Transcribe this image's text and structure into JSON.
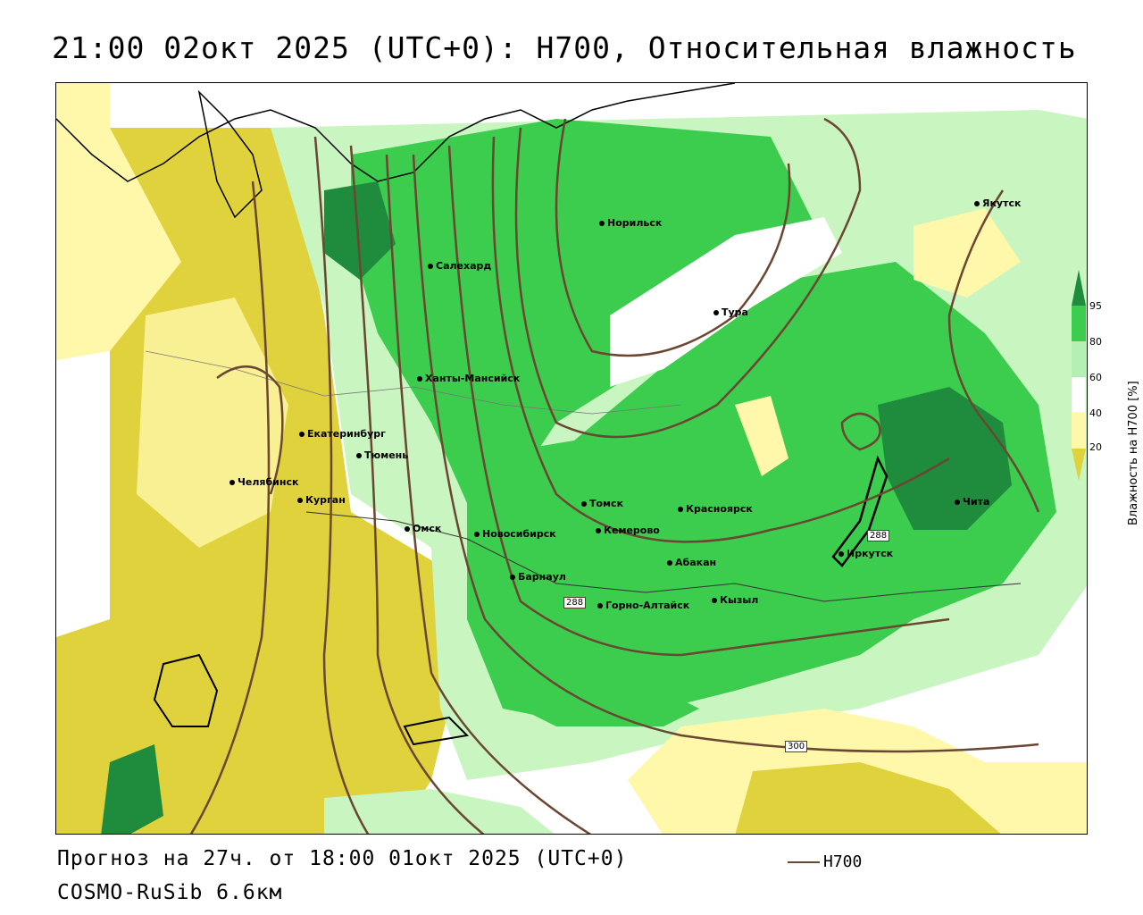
{
  "header": {
    "title": "21:00 02окт 2025 (UTC+0): H700, Относительная влажность"
  },
  "footer": {
    "forecast": "Прогноз на 27ч. от 18:00 01окт 2025 (UTC+0)",
    "model": "COSMO-RuSib 6.6км",
    "legend_label": "H700"
  },
  "colorbar": {
    "title": "Влажность на H700 [%]",
    "ticks": [
      "95",
      "80",
      "60",
      "40",
      "20"
    ],
    "colors": [
      "#1e8c3c",
      "#3ccc4e",
      "#b4f0b4",
      "#ffffff",
      "#fff7aa",
      "#e0d23c"
    ]
  },
  "contour_labels": [
    "288",
    "288",
    "300"
  ],
  "colors": {
    "contour": "#6b4632",
    "dry": "#e0d23c",
    "dry_light": "#fff7aa",
    "moist_light": "#c8f5c0",
    "moist": "#3ccc4e",
    "moist_dark": "#1e8c3c"
  },
  "cities": [
    {
      "name": "Норильск"
    },
    {
      "name": "Якутск"
    },
    {
      "name": "Салехард"
    },
    {
      "name": "Тура"
    },
    {
      "name": "Ханты-Мансийск"
    },
    {
      "name": "Екатеринбург"
    },
    {
      "name": "Тюмень"
    },
    {
      "name": "Челябинск"
    },
    {
      "name": "Курган"
    },
    {
      "name": "Омск"
    },
    {
      "name": "Томск"
    },
    {
      "name": "Красноярск"
    },
    {
      "name": "Новосибирск"
    },
    {
      "name": "Кемерово"
    },
    {
      "name": "Абакан"
    },
    {
      "name": "Барнаул"
    },
    {
      "name": "Горно-Алтайск"
    },
    {
      "name": "Кызыл"
    },
    {
      "name": "Иркутск"
    },
    {
      "name": "Чита"
    }
  ]
}
